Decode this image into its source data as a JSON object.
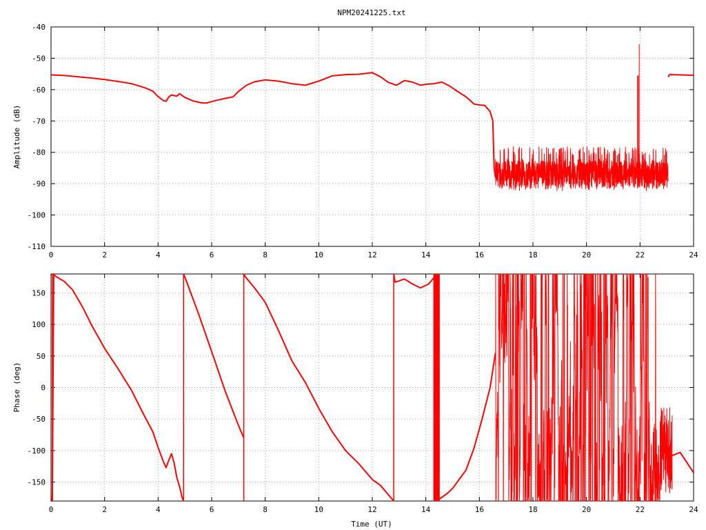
{
  "chart_data": [
    {
      "type": "line",
      "title": "NPM20241225.txt",
      "xlabel": "",
      "ylabel": "Amplitude (dB)",
      "xlim": [
        0,
        24
      ],
      "ylim": [
        -110,
        -40
      ],
      "xticks": [
        "0",
        "2",
        "4",
        "6",
        "8",
        "10",
        "12",
        "14",
        "16",
        "18",
        "20",
        "22",
        "24"
      ],
      "yticks": [
        "-110",
        "-100",
        "-90",
        "-80",
        "-70",
        "-60",
        "-50",
        "-40"
      ],
      "grid": true,
      "color": "#ff0000",
      "series": [
        {
          "x": [
            0,
            0.5,
            1,
            1.5,
            2,
            2.5,
            3,
            3.5,
            3.8,
            4.0,
            4.2,
            4.3,
            4.4,
            4.5,
            4.7,
            4.8,
            5.0,
            5.3,
            5.6,
            5.8,
            6.1,
            6.5,
            6.8,
            7.0,
            7.3,
            7.6,
            8.0,
            8.5,
            9.0,
            9.5,
            10.0,
            10.5,
            11.0,
            11.5,
            12.0,
            12.3,
            12.6,
            12.9,
            13.2,
            13.5,
            13.8,
            14.0,
            14.3,
            14.6,
            14.9,
            15.2,
            15.5,
            15.8,
            16.0,
            16.2,
            16.4,
            16.5,
            16.55,
            16.6
          ],
          "y": [
            -55.3,
            -55.5,
            -55.9,
            -56.3,
            -56.8,
            -57.4,
            -58.1,
            -59.4,
            -60.5,
            -62.2,
            -63.5,
            -63.7,
            -62.3,
            -61.7,
            -62.1,
            -61.3,
            -62.5,
            -63.6,
            -64.2,
            -64.3,
            -63.6,
            -62.8,
            -62.3,
            -60.6,
            -58.6,
            -57.5,
            -56.9,
            -57.3,
            -58.1,
            -58.6,
            -57.3,
            -55.6,
            -55.2,
            -55.1,
            -54.6,
            -55.9,
            -57.7,
            -58.6,
            -57.1,
            -57.6,
            -58.6,
            -58.3,
            -58.1,
            -57.6,
            -58.9,
            -60.7,
            -62.3,
            -64.6,
            -64.9,
            -65.0,
            -67.0,
            -70.0,
            -85.0,
            -88.0
          ]
        },
        {
          "name": "noise",
          "x_range": [
            16.6,
            23.05
          ],
          "mean": -87,
          "spread": 5.5,
          "spike_x": 21.92,
          "spike_y": -55.5
        },
        {
          "x": [
            23.05,
            23.1,
            23.5,
            24
          ],
          "y": [
            -56.0,
            -55.2,
            -55.3,
            -55.4
          ]
        }
      ]
    },
    {
      "type": "line",
      "title": "",
      "xlabel": "Time (UT)",
      "ylabel": "Phase (deg)",
      "xlim": [
        0,
        24
      ],
      "ylim": [
        -180,
        180
      ],
      "xticks": [
        "0",
        "2",
        "4",
        "6",
        "8",
        "10",
        "12",
        "14",
        "16",
        "18",
        "20",
        "22",
        "24"
      ],
      "yticks": [
        "-150",
        "-100",
        "-50",
        "0",
        "50",
        "100",
        "150"
      ],
      "grid": true,
      "color": "#ff0000",
      "series": [
        {
          "x": [
            0,
            0.05,
            0.1,
            0.15,
            0.3,
            0.5,
            0.8,
            1.2,
            1.5,
            2.0,
            2.5,
            3.0,
            3.5,
            3.8,
            4.0,
            4.2,
            4.3,
            4.4,
            4.5,
            4.6,
            4.7,
            4.8,
            4.9,
            4.95
          ],
          "y": [
            -172,
            -180,
            180,
            177,
            173,
            168,
            155,
            126,
            100,
            62,
            30,
            -4,
            -46,
            -70,
            -95,
            -118,
            -127,
            -115,
            -105,
            -120,
            -143,
            -157,
            -175,
            -180
          ]
        },
        {
          "x": [
            4.95,
            5.0,
            5.5,
            6.0,
            6.5,
            7.0,
            7.2
          ],
          "y": [
            180,
            175,
            118,
            57,
            -5,
            -60,
            -80
          ]
        },
        {
          "x": [
            7.2,
            7.25,
            7.6,
            8.0,
            8.5,
            9.0,
            9.5,
            10.0,
            10.5,
            11.0,
            11.5,
            12.0,
            12.3,
            12.6,
            12.8
          ],
          "y": [
            180,
            176,
            158,
            135,
            90,
            42,
            8,
            -33,
            -70,
            -100,
            -121,
            -146,
            -155,
            -170,
            -180
          ]
        },
        {
          "x": [
            12.8,
            12.85,
            13.2,
            13.5,
            13.8,
            14.1,
            14.3
          ],
          "y": [
            180,
            167,
            172,
            164,
            158,
            164,
            174
          ]
        },
        {
          "x": [
            14.5,
            14.8,
            15.0,
            15.5,
            15.8,
            16.1,
            16.4,
            16.6
          ],
          "y": [
            -177,
            -168,
            -160,
            -131,
            -96,
            -50,
            0,
            55
          ]
        },
        {
          "name": "noise",
          "x_range": [
            16.6,
            23.2
          ]
        },
        {
          "x": [
            23.2,
            23.5,
            24
          ],
          "y": [
            -108,
            -103,
            -135
          ]
        }
      ]
    }
  ]
}
